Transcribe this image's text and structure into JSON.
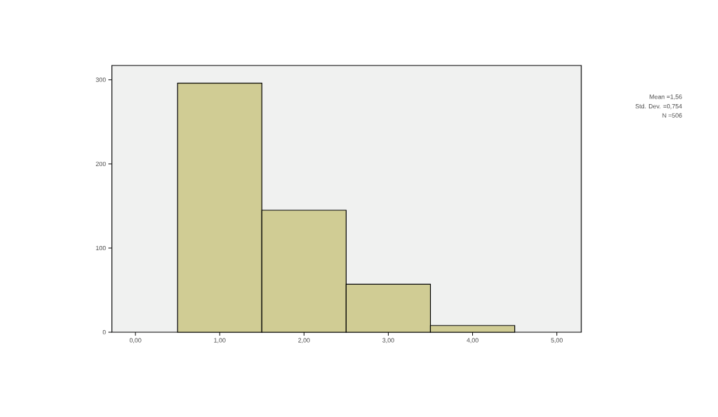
{
  "chart_data": {
    "type": "histogram",
    "bins": [
      0.5,
      1.5,
      2.5,
      3.5,
      4.5
    ],
    "values": [
      296,
      145,
      57,
      8
    ],
    "color": "#d0cc94",
    "xlim": [
      -0.28,
      5.29
    ],
    "ylim": [
      0,
      317
    ],
    "xticks": [
      {
        "value": 0,
        "label": "0,00"
      },
      {
        "value": 1,
        "label": "1,00"
      },
      {
        "value": 2,
        "label": "2,00"
      },
      {
        "value": 3,
        "label": "3,00"
      },
      {
        "value": 4,
        "label": "4,00"
      },
      {
        "value": 5,
        "label": "5,00"
      }
    ],
    "yticks": [
      0,
      100,
      200,
      300
    ],
    "annotations": [
      "Mean =1,56",
      "Std. Dev. =0,754",
      "N =506"
    ]
  }
}
